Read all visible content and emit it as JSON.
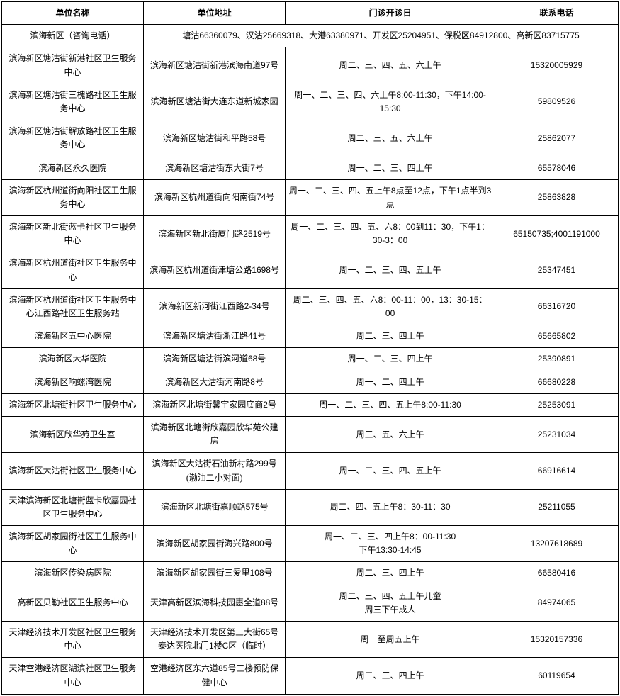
{
  "table": {
    "columns": [
      "单位名称",
      "单位地址",
      "门诊开诊日",
      "联系电话"
    ],
    "col_widths": [
      "23%",
      "23%",
      "34%",
      "20%"
    ],
    "border_color": "#000000",
    "background_color": "#ffffff",
    "font_size": 12,
    "header_font_weight": "bold",
    "merged_row": {
      "name": "滨海新区（咨询电话）",
      "info": "塘沽66360079、汉沽25669318、大港63380971、开发区25204951、保税区84912800、高新区83715775"
    },
    "rows": [
      {
        "name": "滨海新区塘沽街新港社区卫生服务中心",
        "addr": "滨海新区塘沽街新港滨海南道97号",
        "days": "周二、三、四、五、六上午",
        "phone": "15320005929"
      },
      {
        "name": "滨海新区塘沽街三槐路社区卫生服务中心",
        "addr": "滨海新区塘沽街大连东道新城家园",
        "days": "周一、二、三、四、六上午8:00-11:30，下午14:00-15:30",
        "phone": "59809526"
      },
      {
        "name": "滨海新区塘沽街解放路社区卫生服务中心",
        "addr": "滨海新区塘沽街和平路58号",
        "days": "周二、三、五、六上午",
        "phone": "25862077"
      },
      {
        "name": "滨海新区永久医院",
        "addr": "滨海新区塘沽街东大街7号",
        "days": "周一、二、三、四上午",
        "phone": "65578046"
      },
      {
        "name": "滨海新区杭州道街向阳社区卫生服务中心",
        "addr": "滨海新区杭州道街向阳南街74号",
        "days": "周一、二、三、四、五上午8点至12点，下午1点半到3点",
        "phone": "25863828"
      },
      {
        "name": "滨海新区新北街蓝卡社区卫生服务中心",
        "addr": "滨海新区新北街厦门路2519号",
        "days": "周一、二、三、四、五、六8：00到11：30，下午1：30-3：00",
        "phone": "65150735;4001191000"
      },
      {
        "name": "滨海新区杭州道街社区卫生服务中心",
        "addr": "滨海新区杭州道街津塘公路1698号",
        "days": "周一、二、三、四、五上午",
        "phone": "25347451"
      },
      {
        "name": "滨海新区杭州道街社区卫生服务中心江西路社区卫生服务站",
        "addr": "滨海新区新河街江西路2-34号",
        "days": "周二、三、四、五、六8：00-11：00，13：30-15：00",
        "phone": "66316720"
      },
      {
        "name": "滨海新区五中心医院",
        "addr": "滨海新区塘沽街浙江路41号",
        "days": "周二、三、四上午",
        "phone": "65665802"
      },
      {
        "name": "滨海新区大华医院",
        "addr": "滨海新区塘沽街滨河道68号",
        "days": "周一、二、三、四上午",
        "phone": "25390891"
      },
      {
        "name": "滨海新区响螺湾医院",
        "addr": "滨海新区大沽街河南路8号",
        "days": "周一、二、四上午",
        "phone": "66680228"
      },
      {
        "name": "滨海新区北塘街社区卫生服务中心",
        "addr": "滨海新区北塘街馨宇家园底商2号",
        "days": "周一、二、三、四、五上午8:00-11:30",
        "phone": "25253091"
      },
      {
        "name": "滨海新区欣华苑卫生室",
        "addr": "滨海新区北塘街欣嘉园欣华苑公建房",
        "days": "周三、五、六上午",
        "phone": "25231034"
      },
      {
        "name": "滨海新区大沽街社区卫生服务中心",
        "addr": "滨海新区大沽街石油新村路299号(渤油二小对面)",
        "days": "周一、二、三、四、五上午",
        "phone": "66916614"
      },
      {
        "name": "天津滨海新区北塘街蓝卡欣嘉园社区卫生服务中心",
        "addr": "滨海新区北塘街嘉顺路575号",
        "days": "周二、四、五上午8：30-11：30",
        "phone": "25211055"
      },
      {
        "name": "滨海新区胡家园街社区卫生服务中心",
        "addr": "滨海新区胡家园街海兴路800号",
        "days": "周一、二、三、四上午8：00-11:30\n下午13:30-14:45",
        "phone": "13207618689"
      },
      {
        "name": "滨海新区传染病医院",
        "addr": "滨海新区胡家园街三爱里108号",
        "days": "周二、三、四上午",
        "phone": "66580416"
      },
      {
        "name": "高新区贝勒社区卫生服务中心",
        "addr": "天津高新区滨海科技园惠全道88号",
        "days": "周二、三、四、五上午儿童\n周三下午成人",
        "phone": "84974065"
      },
      {
        "name": "天津经济技术开发区社区卫生服务中心",
        "addr": "天津经济技术开发区第三大街65号泰达医院北门1楼C区（临时）",
        "days": "周一至周五上午",
        "phone": "15320157336"
      },
      {
        "name": "天津空港经济区湖滨社区卫生服务中心",
        "addr": "空港经济区东六道85号三楼预防保健中心",
        "days": "周二、三、四上午",
        "phone": "60119654"
      }
    ]
  }
}
